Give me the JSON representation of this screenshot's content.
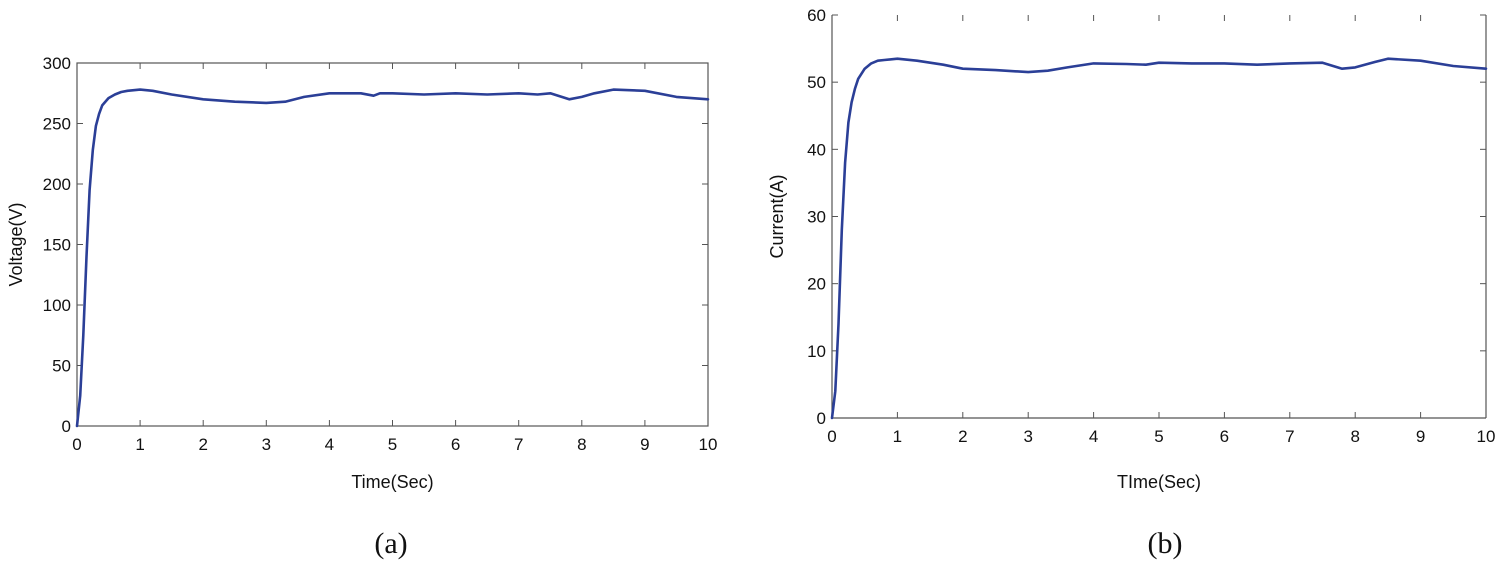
{
  "chart_data": [
    {
      "type": "line",
      "id": "a",
      "caption": "(a)",
      "title": "",
      "xlabel": "Time(Sec)",
      "ylabel": "Voltage(V)",
      "xlim": [
        0,
        10
      ],
      "ylim": [
        0,
        300
      ],
      "xticks": [
        0,
        1,
        2,
        3,
        4,
        5,
        6,
        7,
        8,
        9,
        10
      ],
      "yticks": [
        0,
        50,
        100,
        150,
        200,
        250,
        300
      ],
      "box": "full",
      "grid": false,
      "line_color": "#2b3f97",
      "series": [
        {
          "x": [
            0,
            0.05,
            0.1,
            0.15,
            0.2,
            0.25,
            0.3,
            0.35,
            0.4,
            0.5,
            0.6,
            0.7,
            0.8,
            1.0,
            1.2,
            1.5,
            2.0,
            2.5,
            3.0,
            3.3,
            3.6,
            4.0,
            4.5,
            4.7,
            4.8,
            5.0,
            5.5,
            6.0,
            6.5,
            7.0,
            7.3,
            7.5,
            7.8,
            8.0,
            8.2,
            8.5,
            9.0,
            9.5,
            10.0
          ],
          "y": [
            0,
            25,
            75,
            140,
            195,
            228,
            248,
            258,
            265,
            271,
            274,
            276,
            277,
            278,
            277,
            274,
            270,
            268,
            267,
            268,
            272,
            275,
            275,
            273,
            275,
            275,
            274,
            275,
            274,
            275,
            274,
            275,
            270,
            272,
            275,
            278,
            277,
            272,
            270
          ]
        }
      ]
    },
    {
      "type": "line",
      "id": "b",
      "caption": "(b)",
      "title": "",
      "xlabel": "TIme(Sec)",
      "ylabel": "Current(A)",
      "xlim": [
        0,
        10
      ],
      "ylim": [
        0,
        60
      ],
      "xticks": [
        0,
        1,
        2,
        3,
        4,
        5,
        6,
        7,
        8,
        9,
        10
      ],
      "yticks": [
        0,
        10,
        20,
        30,
        40,
        50,
        60
      ],
      "box": "open",
      "grid": false,
      "line_color": "#2b3f97",
      "series": [
        {
          "x": [
            0,
            0.05,
            0.1,
            0.15,
            0.2,
            0.25,
            0.3,
            0.35,
            0.4,
            0.5,
            0.6,
            0.7,
            0.8,
            1.0,
            1.3,
            1.7,
            2.0,
            2.5,
            3.0,
            3.3,
            3.6,
            4.0,
            4.5,
            4.8,
            5.0,
            5.5,
            6.0,
            6.5,
            7.0,
            7.5,
            7.8,
            8.0,
            8.3,
            8.5,
            9.0,
            9.5,
            10.0
          ],
          "y": [
            0,
            4,
            14,
            28,
            38,
            44,
            47,
            49,
            50.5,
            52,
            52.8,
            53.2,
            53.3,
            53.5,
            53.2,
            52.6,
            52,
            51.8,
            51.5,
            51.7,
            52.2,
            52.8,
            52.7,
            52.6,
            52.9,
            52.8,
            52.8,
            52.6,
            52.8,
            52.9,
            52,
            52.2,
            53,
            53.5,
            53.2,
            52.4,
            52
          ]
        }
      ]
    }
  ]
}
